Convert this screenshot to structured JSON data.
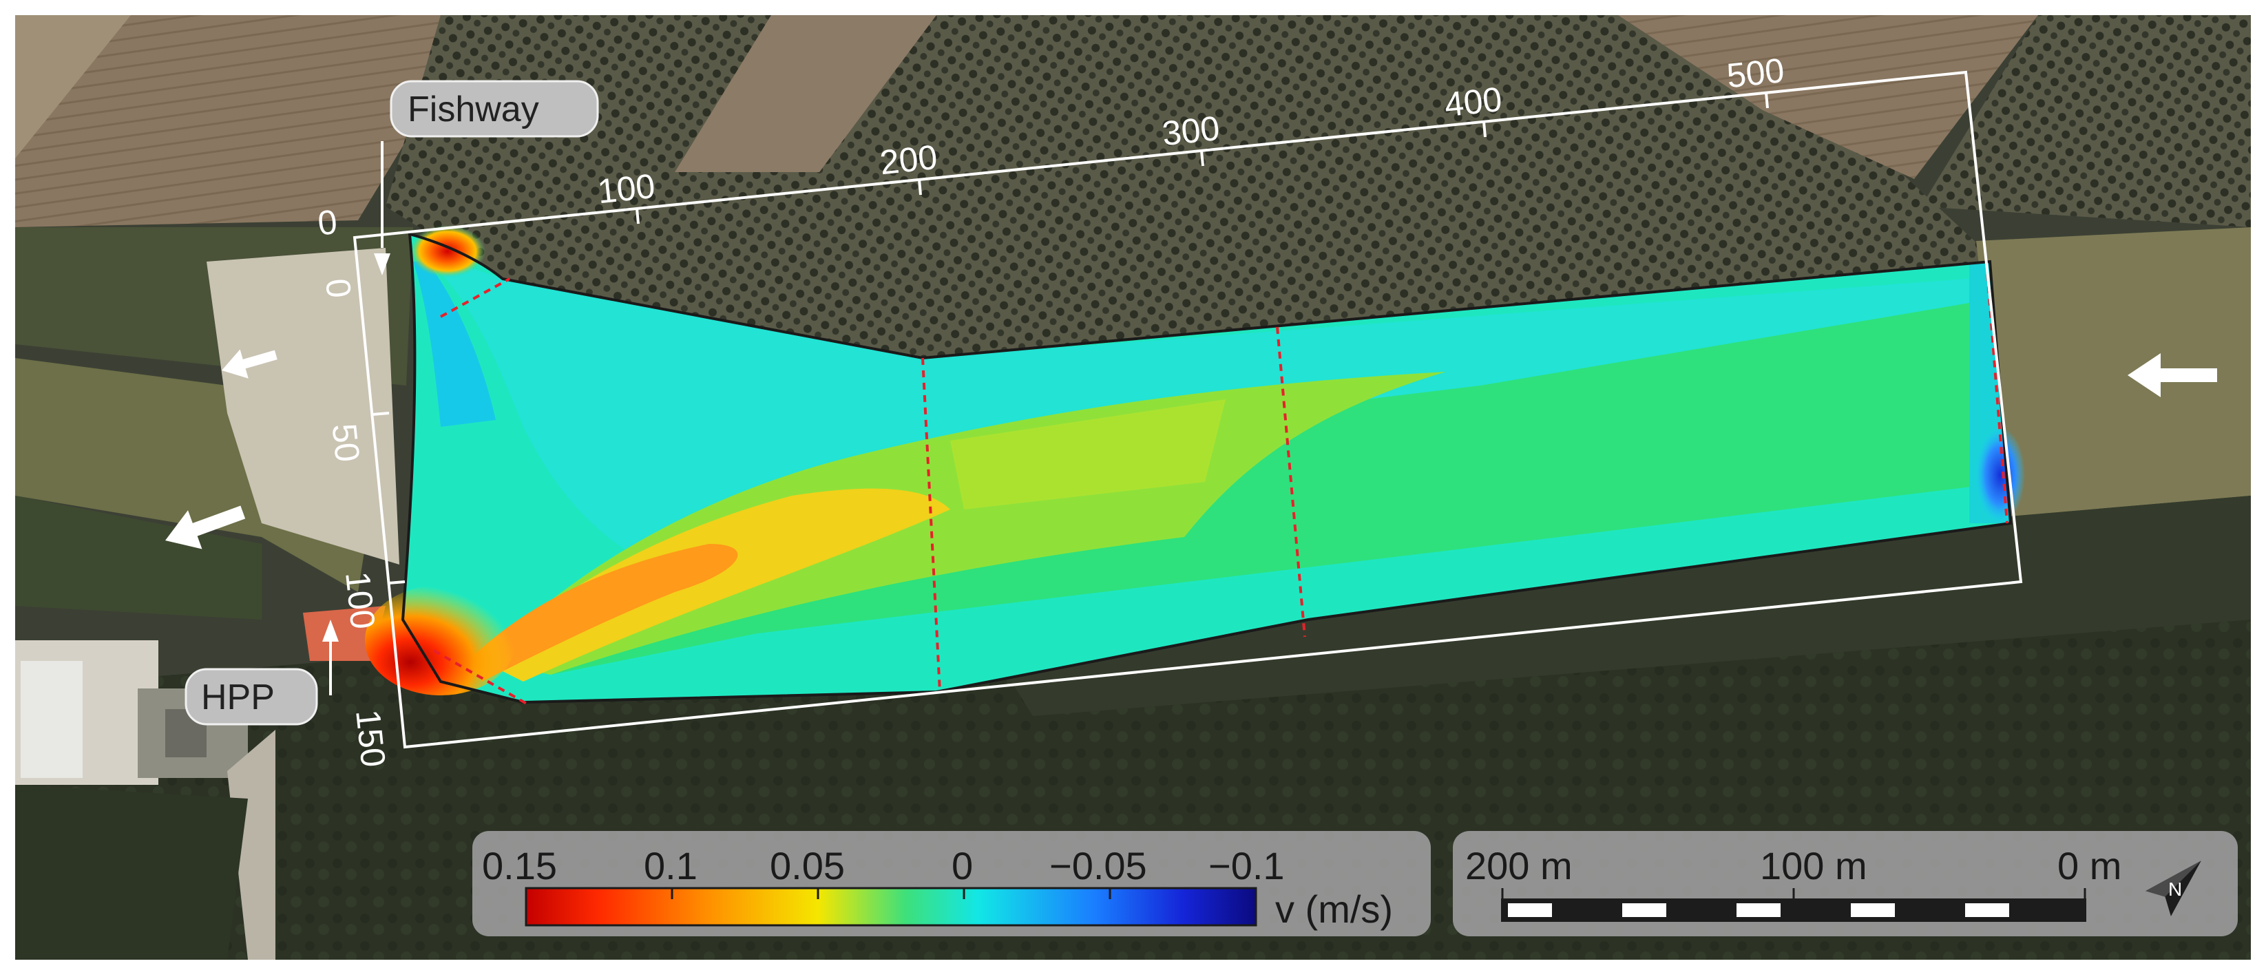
{
  "map": {
    "annotations": {
      "fishway": "Fishway",
      "hpp": "HPP"
    },
    "grid": {
      "x_ticks": [
        "100",
        "200",
        "300",
        "400",
        "500"
      ],
      "x_origin": "0",
      "y_ticks": [
        "0",
        "50",
        "100",
        "150"
      ]
    },
    "flow_direction": "downstream arrows pointing left (river flows right to left)",
    "colors": {
      "frame": "#ffffff",
      "section_lines": "#e8202a",
      "river": "#7d7a55"
    }
  },
  "legend": {
    "velocity": {
      "label": "v (m/s)",
      "ticks": [
        "0.15",
        "0.1",
        "0.05",
        "0",
        "−0.05",
        "−0.1"
      ],
      "range": [
        0.15,
        -0.1
      ],
      "colormap": [
        "#c40000",
        "#ff3300",
        "#ff8c00",
        "#ffd400",
        "#b7e31e",
        "#2fe07a",
        "#12d9d0",
        "#1f8fff",
        "#1a2fd6",
        "#0d0c80"
      ]
    },
    "scale": {
      "labels": [
        "200 m",
        "100 m",
        "0 m"
      ]
    },
    "north": {
      "icon": "north-arrow-icon",
      "letter": "N"
    }
  }
}
